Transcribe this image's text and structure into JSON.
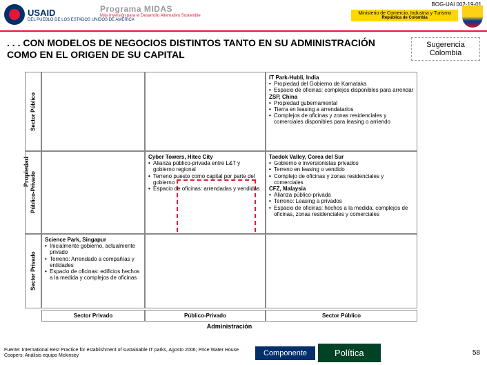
{
  "doc_code": "BOG-UAI 002-19-01",
  "usaid_label": "USAID",
  "usaid_sub": "DEL PUEBLO DE LOS ESTADOS\nUNIDOS DE AMÉRICA",
  "midas_title": "Programa MIDAS",
  "midas_sub": "Más Inversión para el Desarrollo Alternativo Sostenible",
  "ministry": "Ministerio de Comercio, Industria y Turismo",
  "ministry_sub": "República de Colombia",
  "title": ". . . CON MODELOS DE NEGOCIOS DISTINTOS TANTO EN SU ADMINISTRACIÓN COMO EN EL ORIGEN DE SU CAPITAL",
  "suggestion": "Sugerencia Colombia",
  "ylabel_outer": "Propiedad",
  "ylabels": [
    "Sector Público",
    "Público-Privado",
    "Sector Privado"
  ],
  "xlabel_outer": "Administración",
  "xlabels": [
    "Sector Privado",
    "Público-Privado",
    "Sector Público"
  ],
  "cells": {
    "r0c2": [
      {
        "t": "IT Park-Hubli, India",
        "b": [
          "Propiedad del Gobierno de Karnataka",
          "Espacio de oficinas: complejos disponibles para arrendar"
        ]
      },
      {
        "t": "ZSP, China",
        "b": [
          "Propiedad gubernamental",
          "Tierra en leasing a arrendatarios",
          "Complejos de oficinas y zonas residenciales y comerciales disponibles para leasing o arriendo"
        ]
      }
    ],
    "r1c1": [
      {
        "t": "Cyber Towers, Hitec City",
        "b": [
          "Alianza público-privada entre L&T y gobierno regional",
          "Terreno puesto como capital por parte del gobierno",
          "Espacio de oficinas: arrendadas y vendidas"
        ]
      }
    ],
    "r1c2": [
      {
        "t": "Taedok Valley, Corea del Sur",
        "b": [
          "Gobierno e inversionistas privados",
          "Terreno en leasing o vendido",
          "Complejo de oficinas y zonas residenciales y comerciales"
        ]
      },
      {
        "t": "CFZ, Malaysia",
        "b": [
          "Alianza público-privada",
          "Terreno: Leasing a privados",
          "Espacio de oficinas: hechos a la medida, complejos de oficinas, zonas residenciales y comerciales"
        ]
      }
    ],
    "r2c0": [
      {
        "t": "Science Park, Singapur",
        "b": [
          "Inicialmente gobierno, actualmente privado",
          "Terreno: Arrendado a compañías y entidades",
          "Espacio de oficinas: edificios hechos a la medida y complejos de oficinas"
        ]
      }
    ]
  },
  "source": "Fuente: International Best Practice for establishment of sustainable IT parks, Agosto 2006; Price Water House Coopers; Análisis equipo Mckinsey",
  "component": "Componente",
  "politica": "Política",
  "pagenum": "58",
  "colors": {
    "accent_red": "#e31837",
    "usaid_blue": "#002f6c",
    "politica_green": "#004225",
    "ministry_yellow": "#ffd700"
  }
}
